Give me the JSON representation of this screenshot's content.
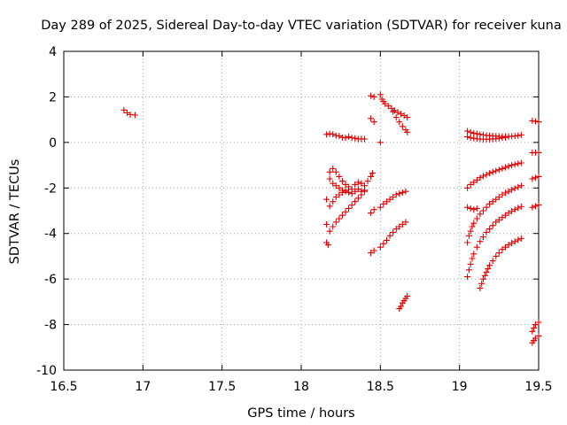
{
  "chart_data": {
    "type": "scatter",
    "title": "Day 289 of 2025, Sidereal Day-to-day VTEC variation (SDTVAR) for receiver kuna",
    "xlabel": "GPS time / hours",
    "ylabel": "SDTVAR / TECUs",
    "xlim": [
      16.5,
      19.5
    ],
    "ylim": [
      -10,
      4
    ],
    "xticks": [
      16.5,
      17,
      17.5,
      18,
      18.5,
      19,
      19.5
    ],
    "xtick_labels": [
      "16.5",
      "17",
      "17.5",
      "18",
      "18.5",
      "19",
      "19.5"
    ],
    "yticks": [
      -10,
      -8,
      -6,
      -4,
      -2,
      0,
      2,
      4
    ],
    "ytick_labels": [
      "-10",
      "-8",
      "-6",
      "-4",
      "-2",
      "0",
      "2",
      "4"
    ],
    "grid": true,
    "marker": "+",
    "marker_color": "#e00000",
    "series": [
      {
        "points": [
          [
            16.88,
            1.42
          ],
          [
            16.9,
            1.3
          ],
          [
            16.92,
            1.22
          ],
          [
            16.95,
            1.2
          ],
          [
            18.16,
            0.35
          ],
          [
            18.18,
            0.38
          ],
          [
            18.2,
            0.36
          ],
          [
            18.22,
            0.3
          ],
          [
            18.24,
            0.28
          ],
          [
            18.26,
            0.22
          ],
          [
            18.28,
            0.2
          ],
          [
            18.3,
            0.25
          ],
          [
            18.32,
            0.2
          ],
          [
            18.34,
            0.18
          ],
          [
            18.36,
            0.15
          ],
          [
            18.38,
            0.16
          ],
          [
            18.4,
            0.15
          ],
          [
            18.5,
            0.0
          ],
          [
            18.44,
            2.05
          ],
          [
            18.46,
            2.0
          ],
          [
            18.44,
            1.05
          ],
          [
            18.46,
            0.9
          ],
          [
            18.5,
            2.1
          ],
          [
            18.51,
            1.9
          ],
          [
            18.52,
            1.8
          ],
          [
            18.53,
            1.7
          ],
          [
            18.55,
            1.6
          ],
          [
            18.57,
            1.5
          ],
          [
            18.59,
            1.4
          ],
          [
            18.61,
            1.32
          ],
          [
            18.63,
            1.25
          ],
          [
            18.65,
            1.18
          ],
          [
            18.67,
            1.1
          ],
          [
            18.58,
            1.35
          ],
          [
            18.6,
            1.1
          ],
          [
            18.62,
            0.9
          ],
          [
            18.64,
            0.7
          ],
          [
            18.66,
            0.55
          ],
          [
            18.67,
            0.45
          ],
          [
            18.18,
            -1.3
          ],
          [
            18.2,
            -1.15
          ],
          [
            18.22,
            -1.3
          ],
          [
            18.24,
            -1.5
          ],
          [
            18.26,
            -1.7
          ],
          [
            18.28,
            -1.85
          ],
          [
            18.3,
            -1.95
          ],
          [
            18.32,
            -2.05
          ],
          [
            18.34,
            -1.85
          ],
          [
            18.36,
            -1.75
          ],
          [
            18.38,
            -1.8
          ],
          [
            18.4,
            -1.9
          ],
          [
            18.42,
            -1.7
          ],
          [
            18.44,
            -1.5
          ],
          [
            18.45,
            -1.35
          ],
          [
            18.18,
            -1.6
          ],
          [
            18.2,
            -1.8
          ],
          [
            18.22,
            -1.9
          ],
          [
            18.24,
            -2.0
          ],
          [
            18.26,
            -2.1
          ],
          [
            18.28,
            -2.15
          ],
          [
            18.3,
            -2.2
          ],
          [
            18.32,
            -2.25
          ],
          [
            18.34,
            -2.15
          ],
          [
            18.36,
            -2.05
          ],
          [
            18.38,
            -2.15
          ],
          [
            18.4,
            -2.1
          ],
          [
            18.16,
            -2.5
          ],
          [
            18.18,
            -2.8
          ],
          [
            18.2,
            -2.6
          ],
          [
            18.22,
            -2.4
          ],
          [
            18.24,
            -2.3
          ],
          [
            18.26,
            -2.2
          ],
          [
            18.28,
            -2.1
          ],
          [
            18.3,
            -2.9
          ],
          [
            18.32,
            -2.75
          ],
          [
            18.34,
            -2.6
          ],
          [
            18.36,
            -2.45
          ],
          [
            18.38,
            -2.3
          ],
          [
            18.4,
            -2.15
          ],
          [
            18.16,
            -3.6
          ],
          [
            18.18,
            -3.9
          ],
          [
            18.2,
            -3.7
          ],
          [
            18.22,
            -3.5
          ],
          [
            18.24,
            -3.35
          ],
          [
            18.26,
            -3.2
          ],
          [
            18.28,
            -3.05
          ],
          [
            18.16,
            -4.4
          ],
          [
            18.17,
            -4.5
          ],
          [
            18.44,
            -3.1
          ],
          [
            18.46,
            -2.95
          ],
          [
            18.5,
            -2.85
          ],
          [
            18.52,
            -2.7
          ],
          [
            18.54,
            -2.6
          ],
          [
            18.56,
            -2.5
          ],
          [
            18.58,
            -2.4
          ],
          [
            18.6,
            -2.3
          ],
          [
            18.62,
            -2.25
          ],
          [
            18.64,
            -2.2
          ],
          [
            18.66,
            -2.15
          ],
          [
            18.44,
            -4.85
          ],
          [
            18.46,
            -4.75
          ],
          [
            18.5,
            -4.6
          ],
          [
            18.52,
            -4.45
          ],
          [
            18.54,
            -4.3
          ],
          [
            18.56,
            -4.1
          ],
          [
            18.58,
            -3.95
          ],
          [
            18.6,
            -3.8
          ],
          [
            18.62,
            -3.7
          ],
          [
            18.64,
            -3.6
          ],
          [
            18.66,
            -3.5
          ],
          [
            18.62,
            -7.3
          ],
          [
            18.63,
            -7.2
          ],
          [
            18.64,
            -7.05
          ],
          [
            18.65,
            -6.95
          ],
          [
            18.66,
            -6.85
          ],
          [
            18.67,
            -6.75
          ],
          [
            19.05,
            0.5
          ],
          [
            19.07,
            0.45
          ],
          [
            19.09,
            0.4
          ],
          [
            19.11,
            0.38
          ],
          [
            19.13,
            0.35
          ],
          [
            19.15,
            0.33
          ],
          [
            19.17,
            0.31
          ],
          [
            19.19,
            0.3
          ],
          [
            19.21,
            0.29
          ],
          [
            19.23,
            0.28
          ],
          [
            19.25,
            0.27
          ],
          [
            19.27,
            0.26
          ],
          [
            19.29,
            0.26
          ],
          [
            19.31,
            0.26
          ],
          [
            19.33,
            0.27
          ],
          [
            19.35,
            0.28
          ],
          [
            19.37,
            0.3
          ],
          [
            19.39,
            0.33
          ],
          [
            19.05,
            0.25
          ],
          [
            19.07,
            0.2
          ],
          [
            19.09,
            0.18
          ],
          [
            19.11,
            0.16
          ],
          [
            19.13,
            0.15
          ],
          [
            19.15,
            0.14
          ],
          [
            19.17,
            0.14
          ],
          [
            19.19,
            0.14
          ],
          [
            19.21,
            0.15
          ],
          [
            19.23,
            0.16
          ],
          [
            19.25,
            0.18
          ],
          [
            19.27,
            0.2
          ],
          [
            19.29,
            0.22
          ],
          [
            19.05,
            -2.0
          ],
          [
            19.07,
            -1.85
          ],
          [
            19.09,
            -1.75
          ],
          [
            19.11,
            -1.65
          ],
          [
            19.13,
            -1.55
          ],
          [
            19.15,
            -1.48
          ],
          [
            19.17,
            -1.42
          ],
          [
            19.19,
            -1.35
          ],
          [
            19.21,
            -1.3
          ],
          [
            19.23,
            -1.25
          ],
          [
            19.25,
            -1.2
          ],
          [
            19.27,
            -1.15
          ],
          [
            19.29,
            -1.1
          ],
          [
            19.31,
            -1.05
          ],
          [
            19.33,
            -1.0
          ],
          [
            19.35,
            -0.97
          ],
          [
            19.37,
            -0.93
          ],
          [
            19.39,
            -0.9
          ],
          [
            19.05,
            -2.85
          ],
          [
            19.07,
            -2.9
          ],
          [
            19.09,
            -2.95
          ],
          [
            19.11,
            -2.9
          ],
          [
            19.05,
            -4.4
          ],
          [
            19.06,
            -4.1
          ],
          [
            19.07,
            -3.9
          ],
          [
            19.08,
            -3.7
          ],
          [
            19.09,
            -3.55
          ],
          [
            19.11,
            -3.35
          ],
          [
            19.13,
            -3.15
          ],
          [
            19.15,
            -3.0
          ],
          [
            19.17,
            -2.85
          ],
          [
            19.19,
            -2.7
          ],
          [
            19.21,
            -2.6
          ],
          [
            19.23,
            -2.5
          ],
          [
            19.25,
            -2.4
          ],
          [
            19.27,
            -2.3
          ],
          [
            19.29,
            -2.22
          ],
          [
            19.31,
            -2.15
          ],
          [
            19.33,
            -2.08
          ],
          [
            19.35,
            -2.02
          ],
          [
            19.37,
            -1.96
          ],
          [
            19.39,
            -1.9
          ],
          [
            19.05,
            -5.9
          ],
          [
            19.06,
            -5.6
          ],
          [
            19.07,
            -5.35
          ],
          [
            19.08,
            -5.1
          ],
          [
            19.09,
            -4.9
          ],
          [
            19.11,
            -4.6
          ],
          [
            19.13,
            -4.35
          ],
          [
            19.15,
            -4.15
          ],
          [
            19.17,
            -3.95
          ],
          [
            19.19,
            -3.8
          ],
          [
            19.21,
            -3.65
          ],
          [
            19.23,
            -3.5
          ],
          [
            19.25,
            -3.4
          ],
          [
            19.27,
            -3.3
          ],
          [
            19.29,
            -3.2
          ],
          [
            19.31,
            -3.1
          ],
          [
            19.33,
            -3.02
          ],
          [
            19.35,
            -2.95
          ],
          [
            19.37,
            -2.88
          ],
          [
            19.39,
            -2.82
          ],
          [
            19.13,
            -6.4
          ],
          [
            19.14,
            -6.2
          ],
          [
            19.15,
            -6.0
          ],
          [
            19.16,
            -5.85
          ],
          [
            19.17,
            -5.7
          ],
          [
            19.18,
            -5.55
          ],
          [
            19.19,
            -5.4
          ],
          [
            19.21,
            -5.2
          ],
          [
            19.23,
            -5.0
          ],
          [
            19.25,
            -4.85
          ],
          [
            19.27,
            -4.7
          ],
          [
            19.29,
            -4.6
          ],
          [
            19.31,
            -4.5
          ],
          [
            19.33,
            -4.42
          ],
          [
            19.35,
            -4.35
          ],
          [
            19.37,
            -4.28
          ],
          [
            19.39,
            -4.22
          ],
          [
            19.46,
            0.95
          ],
          [
            19.48,
            0.93
          ],
          [
            19.5,
            0.9
          ],
          [
            19.46,
            -0.45
          ],
          [
            19.48,
            -0.45
          ],
          [
            19.5,
            -0.45
          ],
          [
            19.46,
            -1.6
          ],
          [
            19.48,
            -1.55
          ],
          [
            19.5,
            -1.5
          ],
          [
            19.46,
            -2.85
          ],
          [
            19.48,
            -2.8
          ],
          [
            19.5,
            -2.75
          ],
          [
            19.46,
            -8.3
          ],
          [
            19.47,
            -8.15
          ],
          [
            19.48,
            -8.0
          ],
          [
            19.5,
            -7.9
          ],
          [
            19.46,
            -8.8
          ],
          [
            19.47,
            -8.7
          ],
          [
            19.48,
            -8.6
          ],
          [
            19.5,
            -8.5
          ]
        ]
      }
    ]
  }
}
